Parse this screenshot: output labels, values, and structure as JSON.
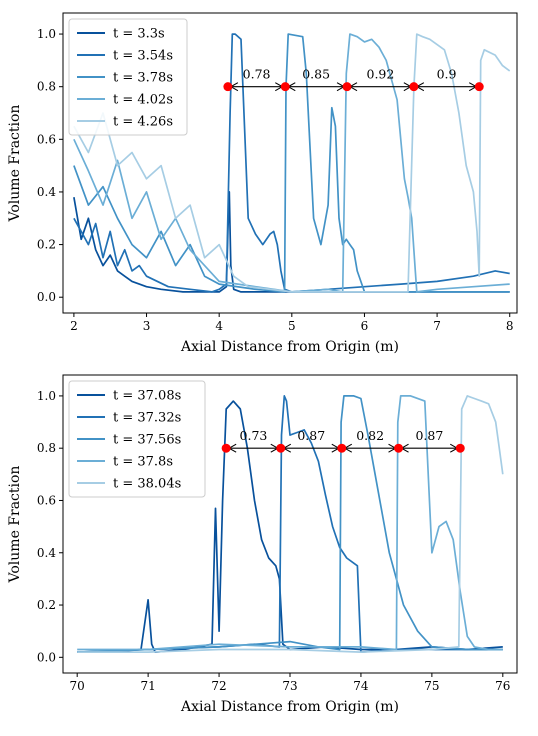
{
  "chart_data": [
    {
      "type": "line",
      "xlabel": "Axial Distance from Origin (m)",
      "ylabel": "Volume Fraction",
      "xlim": [
        1.85,
        8.1
      ],
      "ylim": [
        -0.06,
        1.08
      ],
      "xticks": [
        2,
        3,
        4,
        5,
        6,
        7,
        8
      ],
      "yticks": [
        0.0,
        0.2,
        0.4,
        0.6,
        0.8,
        1.0
      ],
      "grid": false,
      "legend_position": "top-left",
      "series": [
        {
          "name": "t = 3.3s",
          "color": "#08519c",
          "x": [
            2.0,
            2.1,
            2.2,
            2.3,
            2.4,
            2.5,
            2.6,
            2.7,
            2.8,
            2.9,
            3.0,
            3.2,
            3.5,
            3.8,
            4.0,
            4.1,
            4.12,
            4.14,
            4.16,
            4.2,
            4.3,
            4.5,
            5.0,
            5.5,
            6.0,
            6.5,
            7.0,
            7.5,
            8.0
          ],
          "y": [
            0.38,
            0.22,
            0.3,
            0.18,
            0.12,
            0.16,
            0.1,
            0.08,
            0.06,
            0.05,
            0.04,
            0.03,
            0.02,
            0.02,
            0.02,
            0.04,
            0.25,
            0.4,
            0.12,
            0.03,
            0.02,
            0.02,
            0.02,
            0.02,
            0.02,
            0.02,
            0.02,
            0.02,
            0.02
          ]
        },
        {
          "name": "t = 3.54s",
          "color": "#2171b5",
          "x": [
            2.0,
            2.1,
            2.2,
            2.3,
            2.4,
            2.5,
            2.6,
            2.7,
            2.8,
            2.9,
            3.0,
            3.3,
            3.6,
            3.9,
            4.0,
            4.1,
            4.15,
            4.18,
            4.22,
            4.3,
            4.4,
            4.5,
            4.6,
            4.7,
            4.75,
            4.8,
            4.85,
            4.9,
            5.0,
            5.5,
            6.0,
            6.5,
            7.0,
            7.5,
            7.8,
            8.0
          ],
          "y": [
            0.3,
            0.25,
            0.2,
            0.28,
            0.15,
            0.25,
            0.12,
            0.18,
            0.1,
            0.12,
            0.08,
            0.04,
            0.03,
            0.02,
            0.03,
            0.05,
            0.7,
            1.0,
            1.0,
            0.98,
            0.3,
            0.24,
            0.2,
            0.24,
            0.25,
            0.2,
            0.1,
            0.03,
            0.02,
            0.03,
            0.04,
            0.05,
            0.06,
            0.08,
            0.1,
            0.09
          ]
        },
        {
          "name": "t = 3.78s",
          "color": "#4292c6",
          "x": [
            2.0,
            2.2,
            2.4,
            2.6,
            2.8,
            3.0,
            3.2,
            3.4,
            3.6,
            3.8,
            4.0,
            4.5,
            4.9,
            4.92,
            4.95,
            5.15,
            5.2,
            5.3,
            5.4,
            5.5,
            5.55,
            5.6,
            5.65,
            5.7,
            5.75,
            5.8,
            5.85,
            5.9,
            6.0,
            6.5,
            7.0,
            7.5,
            8.0
          ],
          "y": [
            0.5,
            0.35,
            0.42,
            0.3,
            0.2,
            0.15,
            0.25,
            0.12,
            0.2,
            0.08,
            0.05,
            0.03,
            0.02,
            0.8,
            1.0,
            0.99,
            0.85,
            0.3,
            0.2,
            0.35,
            0.72,
            0.65,
            0.3,
            0.2,
            0.22,
            0.2,
            0.18,
            0.1,
            0.02,
            0.02,
            0.02,
            0.02,
            0.02
          ]
        },
        {
          "name": "t = 4.02s",
          "color": "#6baed6",
          "x": [
            2.0,
            2.2,
            2.4,
            2.6,
            2.8,
            3.0,
            3.2,
            3.4,
            3.6,
            3.8,
            4.0,
            4.5,
            5.0,
            5.5,
            5.7,
            5.75,
            5.8,
            5.9,
            6.0,
            6.1,
            6.2,
            6.3,
            6.45,
            6.55,
            6.6,
            6.65,
            6.7,
            6.72,
            7.0,
            7.5,
            8.0
          ],
          "y": [
            0.6,
            0.48,
            0.35,
            0.52,
            0.3,
            0.4,
            0.22,
            0.3,
            0.18,
            0.12,
            0.06,
            0.04,
            0.02,
            0.03,
            0.02,
            0.85,
            1.0,
            0.99,
            0.97,
            0.98,
            0.95,
            0.9,
            0.75,
            0.45,
            0.38,
            0.3,
            0.1,
            0.02,
            0.03,
            0.04,
            0.05
          ]
        },
        {
          "name": "t = 4.26s",
          "color": "#a6cde4",
          "x": [
            2.0,
            2.2,
            2.4,
            2.6,
            2.8,
            3.0,
            3.2,
            3.4,
            3.6,
            3.8,
            4.0,
            4.2,
            4.4,
            5.0,
            6.0,
            6.6,
            6.68,
            6.72,
            6.8,
            6.9,
            7.0,
            7.1,
            7.2,
            7.3,
            7.4,
            7.5,
            7.55,
            7.58,
            7.6,
            7.65,
            7.8,
            7.9,
            8.0
          ],
          "y": [
            0.65,
            0.55,
            0.7,
            0.5,
            0.55,
            0.45,
            0.5,
            0.3,
            0.35,
            0.15,
            0.2,
            0.08,
            0.04,
            0.02,
            0.02,
            0.02,
            0.8,
            1.0,
            0.99,
            0.98,
            0.96,
            0.94,
            0.85,
            0.7,
            0.5,
            0.4,
            0.25,
            0.08,
            0.9,
            0.94,
            0.92,
            0.88,
            0.86
          ]
        }
      ],
      "annotations": {
        "y": 0.8,
        "points": [
          4.12,
          4.91,
          5.76,
          6.68,
          7.58
        ],
        "labels": [
          "0.78",
          "0.85",
          "0.92",
          "0.9"
        ]
      }
    },
    {
      "type": "line",
      "xlabel": "Axial Distance from Origin (m)",
      "ylabel": "Volume Fraction",
      "xlim": [
        69.8,
        76.2
      ],
      "ylim": [
        -0.06,
        1.08
      ],
      "xticks": [
        70,
        71,
        72,
        73,
        74,
        75,
        76
      ],
      "yticks": [
        0.0,
        0.2,
        0.4,
        0.6,
        0.8,
        1.0
      ],
      "grid": false,
      "legend_position": "top-left",
      "series": [
        {
          "name": "t = 37.08s",
          "color": "#08519c",
          "x": [
            70.0,
            70.5,
            70.9,
            71.0,
            71.05,
            71.1,
            71.5,
            71.9,
            71.95,
            72.0,
            72.05,
            72.1,
            72.2,
            72.3,
            72.4,
            72.5,
            72.6,
            72.7,
            72.8,
            72.85,
            72.9,
            73.0,
            73.5,
            74.0,
            74.5,
            75.0,
            75.5,
            76.0
          ],
          "y": [
            0.02,
            0.02,
            0.03,
            0.22,
            0.05,
            0.02,
            0.03,
            0.05,
            0.57,
            0.1,
            0.6,
            0.95,
            0.98,
            0.95,
            0.8,
            0.6,
            0.45,
            0.38,
            0.35,
            0.3,
            0.05,
            0.03,
            0.04,
            0.03,
            0.03,
            0.04,
            0.03,
            0.04
          ]
        },
        {
          "name": "t = 37.32s",
          "color": "#2171b5",
          "x": [
            70.0,
            71.0,
            72.0,
            72.5,
            72.85,
            72.88,
            72.92,
            72.95,
            73.0,
            73.1,
            73.2,
            73.3,
            73.4,
            73.5,
            73.6,
            73.7,
            73.8,
            73.9,
            73.95,
            74.0,
            74.5,
            75.0,
            75.5,
            76.0
          ],
          "y": [
            0.02,
            0.03,
            0.04,
            0.05,
            0.04,
            0.85,
            1.0,
            0.98,
            0.85,
            0.86,
            0.87,
            0.82,
            0.75,
            0.62,
            0.5,
            0.42,
            0.38,
            0.36,
            0.35,
            0.02,
            0.03,
            0.03,
            0.03,
            0.03
          ]
        },
        {
          "name": "t = 37.56s",
          "color": "#4292c6",
          "x": [
            70.0,
            71.0,
            72.0,
            73.0,
            73.4,
            73.7,
            73.72,
            73.76,
            73.9,
            74.0,
            74.1,
            74.2,
            74.3,
            74.4,
            74.5,
            74.6,
            74.8,
            75.0,
            75.5,
            76.0
          ],
          "y": [
            0.02,
            0.03,
            0.04,
            0.06,
            0.04,
            0.03,
            0.9,
            1.0,
            1.0,
            0.99,
            0.85,
            0.7,
            0.55,
            0.4,
            0.3,
            0.2,
            0.1,
            0.04,
            0.03,
            0.03
          ]
        },
        {
          "name": "t = 37.8s",
          "color": "#6baed6",
          "x": [
            70.0,
            71.0,
            72.0,
            73.0,
            74.0,
            74.5,
            74.52,
            74.56,
            74.7,
            74.9,
            75.0,
            75.1,
            75.2,
            75.3,
            75.4,
            75.5,
            75.6,
            75.8,
            76.0
          ],
          "y": [
            0.03,
            0.03,
            0.05,
            0.04,
            0.04,
            0.03,
            0.9,
            1.0,
            1.0,
            0.98,
            0.4,
            0.5,
            0.52,
            0.45,
            0.25,
            0.08,
            0.04,
            0.03,
            0.03
          ]
        },
        {
          "name": "t = 38.04s",
          "color": "#a6cde4",
          "x": [
            70.0,
            71.0,
            72.0,
            73.0,
            74.0,
            75.0,
            75.38,
            75.42,
            75.5,
            75.6,
            75.7,
            75.8,
            75.9,
            75.95,
            76.0
          ],
          "y": [
            0.02,
            0.02,
            0.03,
            0.03,
            0.02,
            0.03,
            0.04,
            0.95,
            1.0,
            0.99,
            0.98,
            0.97,
            0.9,
            0.8,
            0.7
          ]
        }
      ],
      "annotations": {
        "y": 0.8,
        "points": [
          72.1,
          72.87,
          73.73,
          74.53,
          75.4
        ],
        "labels": [
          "0.73",
          "0.87",
          "0.82",
          "0.87"
        ]
      }
    }
  ]
}
